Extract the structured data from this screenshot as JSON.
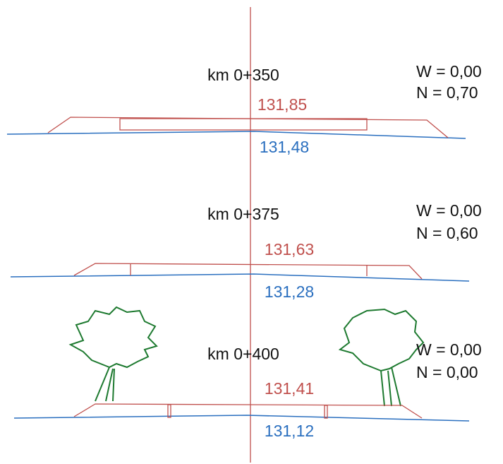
{
  "sections": [
    {
      "station": "km 0+350",
      "design": "131,85",
      "terrain": "131,48",
      "w": "W = 0,00",
      "n": "N  = 0,70"
    },
    {
      "station": "km 0+375",
      "design": "131,63",
      "terrain": "131,28",
      "w": "W = 0,00",
      "n": "N  = 0,60"
    },
    {
      "station": "km 0+400",
      "design": "131,41",
      "terrain": "131,12",
      "w": "W = 0,00",
      "n": "N  = 0,00"
    }
  ]
}
